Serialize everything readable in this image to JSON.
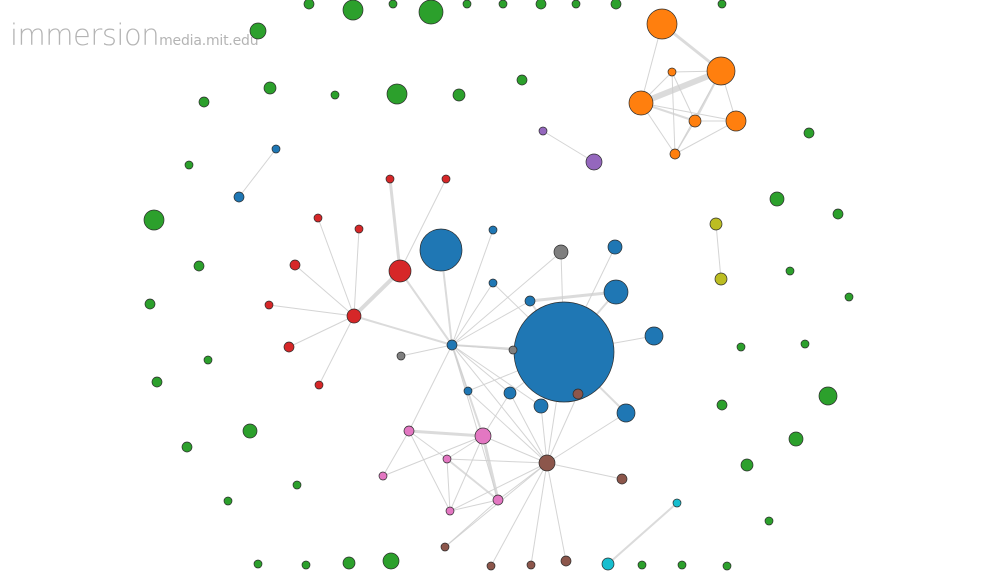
{
  "brand": {
    "name": "immersion",
    "domain": "media.mit.edu"
  },
  "colors": {
    "green": "#2ca02c",
    "orange": "#ff7f0e",
    "blue": "#1f77b4",
    "red": "#d62728",
    "purple": "#9467bd",
    "brown": "#8c564b",
    "pink": "#e377c2",
    "gray": "#7f7f7f",
    "olive": "#bcbd22",
    "cyan": "#17becf"
  }
}
